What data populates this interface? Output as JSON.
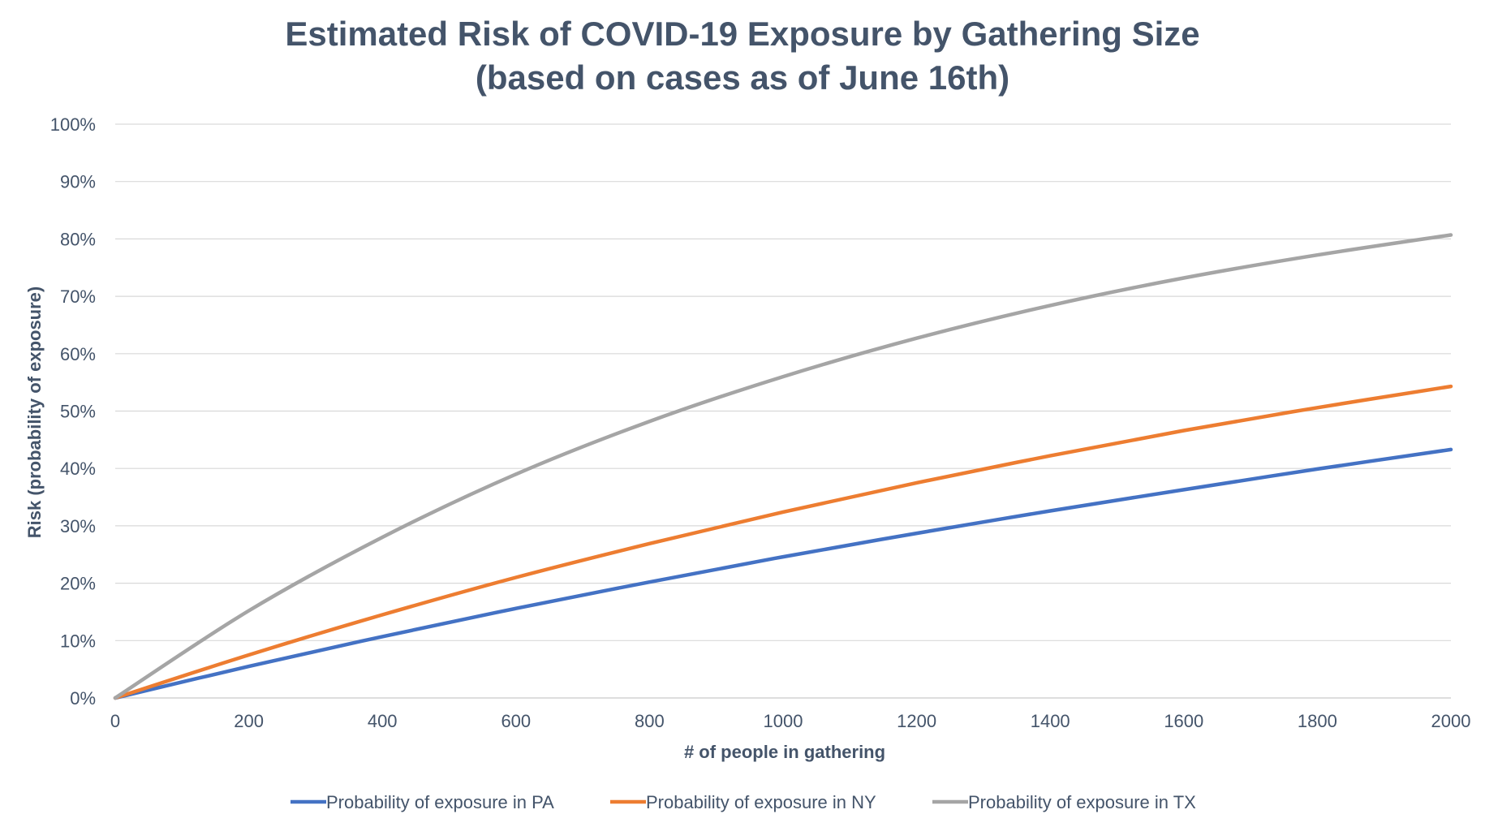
{
  "chart_data": {
    "type": "line",
    "title": "Estimated Risk of COVID-19 Exposure by Gathering Size",
    "subtitle": "(based on cases as of June 16th)",
    "xlabel": "# of people in gathering",
    "ylabel": "Risk (probability of exposure)",
    "xlim": [
      0,
      2000
    ],
    "ylim": [
      0,
      1
    ],
    "x_ticks": [
      "0",
      "200",
      "400",
      "600",
      "800",
      "1000",
      "1200",
      "1400",
      "1600",
      "1800",
      "2000"
    ],
    "y_ticks": [
      "0%",
      "10%",
      "20%",
      "30%",
      "40%",
      "50%",
      "60%",
      "70%",
      "80%",
      "90%",
      "100%"
    ],
    "grid": true,
    "legend_position": "bottom",
    "x": [
      0,
      200,
      400,
      600,
      800,
      1000,
      1200,
      1400,
      1600,
      1800,
      2000
    ],
    "series": [
      {
        "name": "Probability of exposure in PA",
        "color": "#4472c4",
        "values": [
          0,
          0.055,
          0.107,
          0.156,
          0.202,
          0.246,
          0.287,
          0.326,
          0.363,
          0.399,
          0.433
        ]
      },
      {
        "name": "Probability of exposure in NY",
        "color": "#ed7d31",
        "values": [
          0,
          0.075,
          0.145,
          0.21,
          0.269,
          0.324,
          0.375,
          0.422,
          0.466,
          0.506,
          0.543
        ]
      },
      {
        "name": "Probability of exposure in TX",
        "color": "#a5a5a5",
        "values": [
          0,
          0.152,
          0.28,
          0.39,
          0.482,
          0.56,
          0.627,
          0.684,
          0.732,
          0.772,
          0.807
        ]
      }
    ]
  }
}
